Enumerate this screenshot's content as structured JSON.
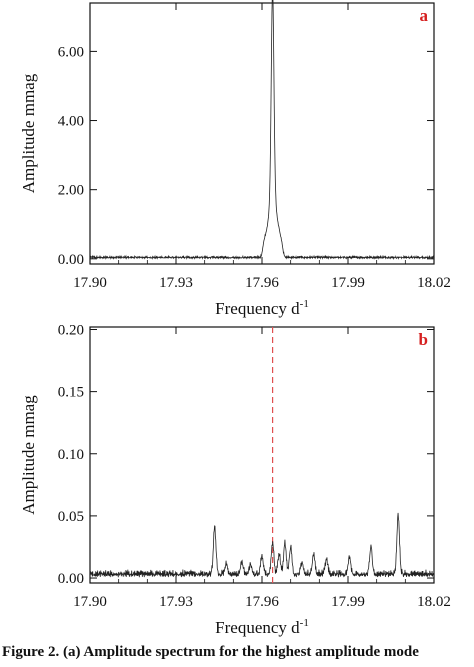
{
  "chart_data": [
    {
      "type": "line",
      "panel_label": "a",
      "xlabel": "Frequency d",
      "xlabel_sup": "-1",
      "ylabel": "Amplitude mmag",
      "xlim": [
        17.9,
        18.02
      ],
      "ylim": [
        -0.15,
        7.4
      ],
      "x_ticks": [
        "17.90",
        "17.93",
        "17.96",
        "17.99",
        "18.02"
      ],
      "y_ticks": [
        "0.00",
        "2.00",
        "4.00",
        "6.00"
      ],
      "grid": false,
      "series": [
        {
          "baseline": 0.05,
          "peaks": [
            {
              "x": 17.9637,
              "y": 7.15
            },
            {
              "x": 17.963,
              "y": 1.2
            },
            {
              "x": 17.9645,
              "y": 1.25
            },
            {
              "x": 17.9622,
              "y": 0.75
            },
            {
              "x": 17.9653,
              "y": 0.8
            },
            {
              "x": 17.9614,
              "y": 0.5
            },
            {
              "x": 17.9661,
              "y": 0.55
            },
            {
              "x": 17.9606,
              "y": 0.35
            },
            {
              "x": 17.9669,
              "y": 0.35
            }
          ]
        }
      ]
    },
    {
      "type": "line",
      "panel_label": "b",
      "xlabel": "Frequency d",
      "xlabel_sup": "-1",
      "ylabel": "Amplitude mmag",
      "xlim": [
        17.9,
        18.02
      ],
      "ylim": [
        -0.004,
        0.202
      ],
      "x_ticks": [
        "17.90",
        "17.93",
        "17.96",
        "17.99",
        "18.02"
      ],
      "y_ticks": [
        "0.00",
        "0.05",
        "0.10",
        "0.15",
        "0.20"
      ],
      "grid": false,
      "reference_line_x": 17.9637,
      "reference_line_color": "#e05050",
      "series": [
        {
          "baseline": 0.004,
          "peaks": [
            {
              "x": 17.9435,
              "y": 0.037
            },
            {
              "x": 17.9637,
              "y": 0.025
            },
            {
              "x": 17.96,
              "y": 0.015
            },
            {
              "x": 17.968,
              "y": 0.024
            },
            {
              "x": 17.97,
              "y": 0.022
            },
            {
              "x": 17.966,
              "y": 0.016
            },
            {
              "x": 17.978,
              "y": 0.016
            },
            {
              "x": 17.9825,
              "y": 0.012
            },
            {
              "x": 17.9905,
              "y": 0.013
            },
            {
              "x": 17.998,
              "y": 0.022
            },
            {
              "x": 18.0075,
              "y": 0.048
            },
            {
              "x": 17.953,
              "y": 0.01
            },
            {
              "x": 17.956,
              "y": 0.008
            },
            {
              "x": 17.9475,
              "y": 0.009
            },
            {
              "x": 17.974,
              "y": 0.01
            }
          ]
        }
      ]
    }
  ],
  "caption": "Figure 2. (a) Amplitude spectrum for the highest amplitude mode"
}
